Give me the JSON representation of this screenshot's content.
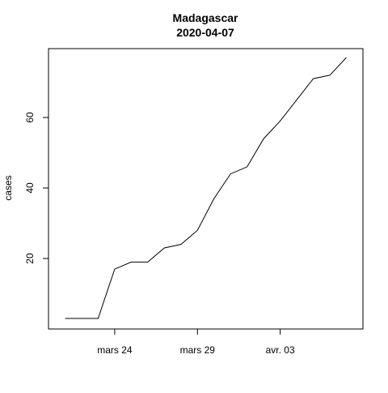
{
  "chart_data": {
    "type": "line",
    "title": "Madagascar",
    "subtitle": "2020-04-07",
    "xlabel": "",
    "ylabel": "cases",
    "x": [
      "2020-03-21",
      "2020-03-22",
      "2020-03-23",
      "2020-03-24",
      "2020-03-25",
      "2020-03-26",
      "2020-03-27",
      "2020-03-28",
      "2020-03-29",
      "2020-03-30",
      "2020-03-31",
      "2020-04-01",
      "2020-04-02",
      "2020-04-03",
      "2020-04-04",
      "2020-04-05",
      "2020-04-06",
      "2020-04-07"
    ],
    "y": [
      3,
      3,
      3,
      17,
      19,
      19,
      23,
      24,
      28,
      37,
      44,
      46,
      54,
      59,
      65,
      71,
      72,
      77
    ],
    "x_ticks": [
      {
        "date": "2020-03-24",
        "label": "mars 24"
      },
      {
        "date": "2020-03-29",
        "label": "mars 29"
      },
      {
        "date": "2020-04-03",
        "label": "avr. 03"
      }
    ],
    "y_ticks": [
      20,
      40,
      60
    ],
    "xlim": [
      "2020-03-20",
      "2020-04-08"
    ],
    "ylim": [
      0,
      80
    ],
    "grid": false,
    "legend": "none"
  }
}
